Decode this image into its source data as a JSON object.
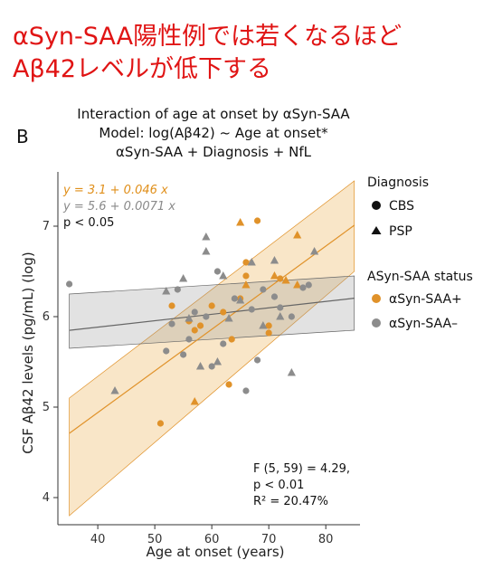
{
  "headline": {
    "line1": "αSyn-SAA陽性例では若くなるほど",
    "line2": "Aβ42レベルが低下する"
  },
  "panel_label": "B",
  "chart_data": {
    "type": "scatter",
    "title": "Interaction of age at onset by αSyn-SAA",
    "subtitle_line1": "Model: log(Aβ42) ~ Age at onset*",
    "subtitle_line2": "αSyn-SAA + Diagnosis + NfL",
    "xlabel": "Age at onset (years)",
    "ylabel": "CSF Aβ42 levels (pg/mL) (log)",
    "xlim": [
      33,
      86
    ],
    "ylim": [
      3.7,
      7.6
    ],
    "x_ticks": [
      40,
      50,
      60,
      70,
      80
    ],
    "y_ticks": [
      4,
      5,
      6,
      7
    ],
    "grid": false,
    "legend": {
      "placement": "right",
      "shape_title": "Diagnosis",
      "shapes": [
        {
          "label": "CBS",
          "marker": "circle"
        },
        {
          "label": "PSP",
          "marker": "triangle"
        }
      ],
      "color_title": "ASyn-SAA status",
      "colors": [
        {
          "label": "αSyn-SAA+",
          "color": "#e0922a"
        },
        {
          "label": "αSyn-SAA–",
          "color": "#8c8c8c"
        }
      ]
    },
    "equations": {
      "pos": "y = 3.1 + 0.046 x",
      "neg": "y = 5.6 + 0.0071 x",
      "p": "p < 0.05"
    },
    "stats": {
      "f": "F (5, 59) = 4.29,",
      "p": "p < 0.01",
      "r2": "R² = 20.47%"
    },
    "fit_lines": [
      {
        "group": "αSyn-SAA+",
        "intercept": 3.1,
        "slope": 0.046,
        "color": "#e0922a",
        "band_x": [
          35,
          85
        ],
        "band_lower": [
          3.8,
          6.5
        ],
        "band_upper": [
          5.1,
          7.5
        ]
      },
      {
        "group": "αSyn-SAA–",
        "intercept": 5.6,
        "slope": 0.0071,
        "color": "#666666",
        "band_x": [
          35,
          85
        ],
        "band_lower": [
          5.65,
          5.85
        ],
        "band_upper": [
          6.25,
          6.45
        ]
      }
    ],
    "series": [
      {
        "name": "αSyn-SAA+",
        "color": "#e0922a",
        "points": [
          {
            "x": 51,
            "y": 4.82,
            "shape": "circle"
          },
          {
            "x": 53,
            "y": 6.12,
            "shape": "circle"
          },
          {
            "x": 56,
            "y": 5.95,
            "shape": "circle"
          },
          {
            "x": 57,
            "y": 5.85,
            "shape": "circle"
          },
          {
            "x": 58,
            "y": 5.9,
            "shape": "circle"
          },
          {
            "x": 60,
            "y": 6.12,
            "shape": "circle"
          },
          {
            "x": 62,
            "y": 6.05,
            "shape": "circle"
          },
          {
            "x": 63,
            "y": 5.25,
            "shape": "circle"
          },
          {
            "x": 63.5,
            "y": 5.75,
            "shape": "circle"
          },
          {
            "x": 65,
            "y": 6.2,
            "shape": "circle"
          },
          {
            "x": 66,
            "y": 6.45,
            "shape": "circle"
          },
          {
            "x": 66,
            "y": 6.6,
            "shape": "circle"
          },
          {
            "x": 68,
            "y": 7.06,
            "shape": "circle"
          },
          {
            "x": 70,
            "y": 5.9,
            "shape": "circle"
          },
          {
            "x": 70,
            "y": 5.82,
            "shape": "circle"
          },
          {
            "x": 72,
            "y": 6.42,
            "shape": "circle"
          },
          {
            "x": 57,
            "y": 5.06,
            "shape": "triangle"
          },
          {
            "x": 65,
            "y": 7.04,
            "shape": "triangle"
          },
          {
            "x": 66,
            "y": 6.35,
            "shape": "triangle"
          },
          {
            "x": 71,
            "y": 6.45,
            "shape": "triangle"
          },
          {
            "x": 73,
            "y": 6.4,
            "shape": "triangle"
          },
          {
            "x": 75,
            "y": 6.9,
            "shape": "triangle"
          },
          {
            "x": 75,
            "y": 6.35,
            "shape": "triangle"
          }
        ]
      },
      {
        "name": "αSyn-SAA–",
        "color": "#8c8c8c",
        "points": [
          {
            "x": 35,
            "y": 6.36,
            "shape": "circle"
          },
          {
            "x": 52,
            "y": 5.62,
            "shape": "circle"
          },
          {
            "x": 53,
            "y": 5.92,
            "shape": "circle"
          },
          {
            "x": 54,
            "y": 6.3,
            "shape": "circle"
          },
          {
            "x": 55,
            "y": 5.58,
            "shape": "circle"
          },
          {
            "x": 56,
            "y": 5.75,
            "shape": "circle"
          },
          {
            "x": 57,
            "y": 6.05,
            "shape": "circle"
          },
          {
            "x": 59,
            "y": 6.0,
            "shape": "circle"
          },
          {
            "x": 60,
            "y": 5.45,
            "shape": "circle"
          },
          {
            "x": 61,
            "y": 6.5,
            "shape": "circle"
          },
          {
            "x": 62,
            "y": 5.7,
            "shape": "circle"
          },
          {
            "x": 64,
            "y": 6.2,
            "shape": "circle"
          },
          {
            "x": 66,
            "y": 5.18,
            "shape": "circle"
          },
          {
            "x": 67,
            "y": 6.08,
            "shape": "circle"
          },
          {
            "x": 68,
            "y": 5.52,
            "shape": "circle"
          },
          {
            "x": 69,
            "y": 6.3,
            "shape": "circle"
          },
          {
            "x": 71,
            "y": 6.22,
            "shape": "circle"
          },
          {
            "x": 72,
            "y": 6.1,
            "shape": "circle"
          },
          {
            "x": 74,
            "y": 6.0,
            "shape": "circle"
          },
          {
            "x": 76,
            "y": 6.32,
            "shape": "circle"
          },
          {
            "x": 77,
            "y": 6.35,
            "shape": "circle"
          },
          {
            "x": 43,
            "y": 5.18,
            "shape": "triangle"
          },
          {
            "x": 52,
            "y": 6.28,
            "shape": "triangle"
          },
          {
            "x": 55,
            "y": 6.42,
            "shape": "triangle"
          },
          {
            "x": 56,
            "y": 5.98,
            "shape": "triangle"
          },
          {
            "x": 58,
            "y": 5.45,
            "shape": "triangle"
          },
          {
            "x": 59,
            "y": 6.72,
            "shape": "triangle"
          },
          {
            "x": 59,
            "y": 6.88,
            "shape": "triangle"
          },
          {
            "x": 61,
            "y": 5.5,
            "shape": "triangle"
          },
          {
            "x": 62,
            "y": 6.45,
            "shape": "triangle"
          },
          {
            "x": 63,
            "y": 5.98,
            "shape": "triangle"
          },
          {
            "x": 65,
            "y": 6.18,
            "shape": "triangle"
          },
          {
            "x": 67,
            "y": 6.6,
            "shape": "triangle"
          },
          {
            "x": 69,
            "y": 5.9,
            "shape": "triangle"
          },
          {
            "x": 71,
            "y": 6.62,
            "shape": "triangle"
          },
          {
            "x": 72,
            "y": 6.0,
            "shape": "triangle"
          },
          {
            "x": 74,
            "y": 5.38,
            "shape": "triangle"
          },
          {
            "x": 78,
            "y": 6.72,
            "shape": "triangle"
          }
        ]
      }
    ]
  }
}
